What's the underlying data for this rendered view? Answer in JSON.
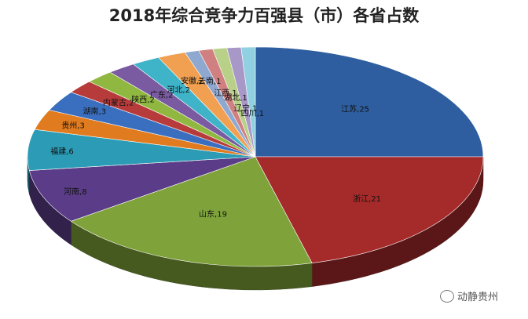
{
  "chart_data": {
    "type": "pie",
    "title": "2018年综合竞争力百强县（市）各省占数",
    "categories": [
      "江苏",
      "浙江",
      "山东",
      "河南",
      "福建",
      "贵州",
      "湖南",
      "内蒙古",
      "陕西",
      "广东",
      "河北",
      "安徽",
      "云南",
      "江西",
      "湖北",
      "辽宁",
      "四川"
    ],
    "values": [
      25,
      21,
      19,
      8,
      6,
      3,
      3,
      2,
      2,
      2,
      2,
      2,
      1,
      1,
      1,
      1,
      1
    ],
    "slice_labels": [
      "江苏,25",
      "浙江,21",
      "山东,19",
      "河南,8",
      "福建,6",
      "贵州,3",
      "湖南,3",
      "内蒙古,2",
      "陕西,2",
      "广东,2",
      "河北,2",
      "安徽,2",
      "云南,1",
      "江西,1",
      "湖北,1",
      "辽宁,1",
      "四川,1"
    ],
    "colors": [
      "#2E5E9F",
      "#A52A2A",
      "#7FA33A",
      "#5B3C88",
      "#2C9BB5",
      "#E07B1F",
      "#3A6FC0",
      "#B83B3B",
      "#90B840",
      "#7A5AA0",
      "#3FB3C8",
      "#F0A050",
      "#8FA8D0",
      "#D08080",
      "#B8D088",
      "#A898C8",
      "#90D0E0"
    ]
  },
  "watermark": {
    "text": "动静贵州"
  }
}
